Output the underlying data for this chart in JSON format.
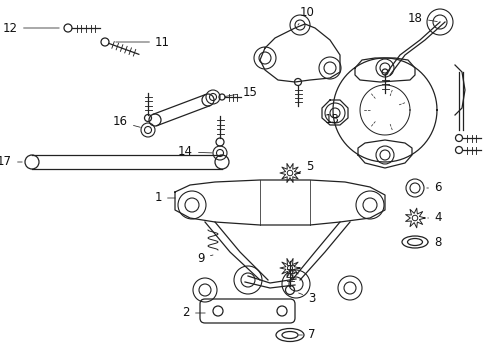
{
  "bg_color": "#ffffff",
  "line_color": "#222222",
  "label_color": "#111111",
  "label_fontsize": 8.5,
  "fig_width": 4.89,
  "fig_height": 3.6,
  "dpi": 100,
  "xlim": [
    0,
    489
  ],
  "ylim": [
    0,
    360
  ]
}
